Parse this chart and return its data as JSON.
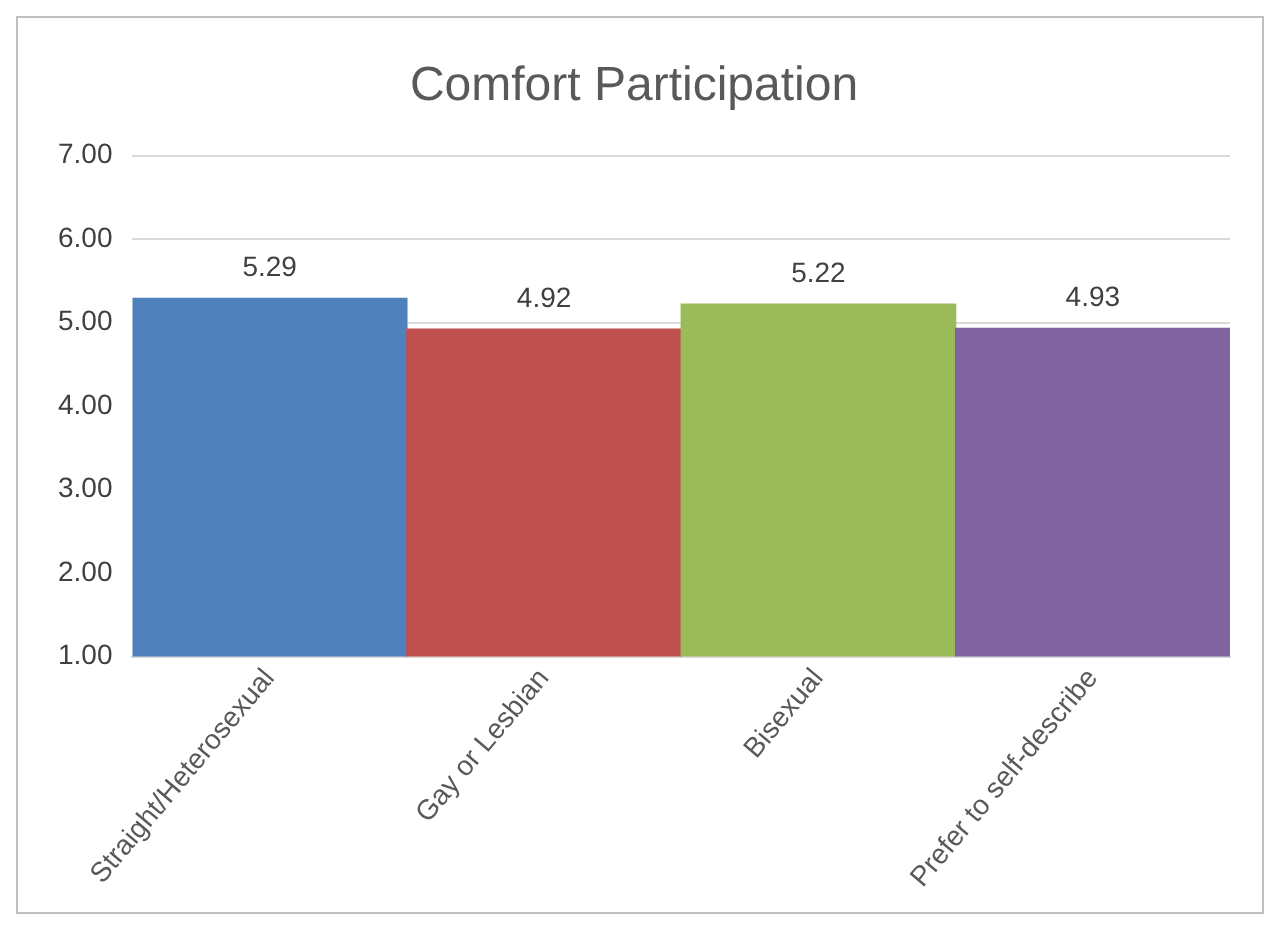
{
  "chart_data": {
    "type": "bar",
    "title": "Comfort Participation",
    "categories": [
      "Straight/Heterosexual",
      "Gay or Lesbian",
      "Bisexual",
      "Prefer to self-describe"
    ],
    "values": [
      5.29,
      4.92,
      5.22,
      4.93
    ],
    "colors": [
      "#4f81bd",
      "#c0504d",
      "#9bbb59",
      "#8064a2"
    ],
    "value_labels": [
      "5.29",
      "4.92",
      "5.22",
      "4.93"
    ],
    "ylim": [
      1,
      7
    ],
    "yticks": [
      {
        "value": 1,
        "label": "1.00"
      },
      {
        "value": 2,
        "label": "2.00"
      },
      {
        "value": 3,
        "label": "3.00"
      },
      {
        "value": 4,
        "label": "4.00"
      },
      {
        "value": 5,
        "label": "5.00"
      },
      {
        "value": 6,
        "label": "6.00"
      },
      {
        "value": 7,
        "label": "7.00"
      }
    ],
    "grid": "y",
    "legend": false
  }
}
